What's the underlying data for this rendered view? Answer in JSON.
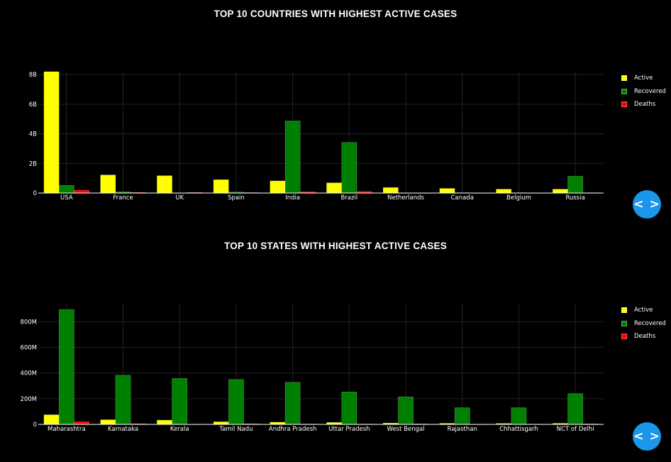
{
  "charts": [
    {
      "title": "TOP 10 COUNTRIES WITH HIGHEST ACTIVE CASES",
      "nav_icon": "code-brackets-icon",
      "nav_glyph": "< >"
    },
    {
      "title": "TOP 10 STATES WITH HIGHEST ACTIVE CASES",
      "nav_icon": "code-brackets-icon",
      "nav_glyph": "< >"
    }
  ],
  "colors": {
    "Active": "#ffff00",
    "Recovered": "#008000",
    "Deaths": "#ff0000",
    "background": "#000000",
    "button": "#1a96ea"
  },
  "chart_data": [
    {
      "type": "bar",
      "title": "TOP 10 COUNTRIES WITH HIGHEST ACTIVE CASES",
      "categories": [
        "USA",
        "France",
        "UK",
        "Spain",
        "India",
        "Brazil",
        "Netherlands",
        "Canada",
        "Belgium",
        "Russia"
      ],
      "series": [
        {
          "name": "Active",
          "color": "#ffff00",
          "values": [
            8200000000,
            1220000000,
            1170000000,
            900000000,
            820000000,
            690000000,
            370000000,
            310000000,
            260000000,
            260000000
          ]
        },
        {
          "name": "Recovered",
          "color": "#008000",
          "values": [
            520000000,
            80000000,
            10000000,
            60000000,
            4870000000,
            3420000000,
            10000000,
            20000000,
            20000000,
            1140000000
          ]
        },
        {
          "name": "Deaths",
          "color": "#ff0000",
          "values": [
            190000000,
            40000000,
            40000000,
            30000000,
            80000000,
            100000000,
            10000000,
            10000000,
            10000000,
            20000000
          ]
        }
      ],
      "ylim": [
        0,
        8200000000
      ],
      "yticks": [
        0,
        2000000000,
        4000000000,
        6000000000,
        8000000000
      ],
      "ytick_labels": [
        "0",
        "2B",
        "4B",
        "6B",
        "8B"
      ],
      "legend": "top-right",
      "grid": true
    },
    {
      "type": "bar",
      "title": "TOP 10 STATES WITH HIGHEST ACTIVE CASES",
      "categories": [
        "Maharashtra",
        "Karnataka",
        "Kerala",
        "Tamil Nadu",
        "Andhra Pradesh",
        "Uttar Pradesh",
        "West Bengal",
        "Rajasthan",
        "Chhattisgarh",
        "NCT of Delhi"
      ],
      "series": [
        {
          "name": "Active",
          "color": "#ffff00",
          "values": [
            75000000,
            36000000,
            33000000,
            20000000,
            17000000,
            15000000,
            10000000,
            8000000,
            7000000,
            8000000
          ]
        },
        {
          "name": "Recovered",
          "color": "#008000",
          "values": [
            895000000,
            383000000,
            358000000,
            350000000,
            328000000,
            253000000,
            215000000,
            130000000,
            130000000,
            240000000
          ]
        },
        {
          "name": "Deaths",
          "color": "#ff0000",
          "values": [
            20000000,
            5000000,
            1500000,
            5000000,
            3000000,
            3000000,
            4000000,
            1500000,
            2000000,
            4000000
          ]
        }
      ],
      "ylim": [
        0,
        940000000
      ],
      "yticks": [
        0,
        200000000,
        400000000,
        600000000,
        800000000
      ],
      "ytick_labels": [
        "0",
        "200M",
        "400M",
        "600M",
        "800M"
      ],
      "legend": "top-right",
      "grid": true
    }
  ]
}
